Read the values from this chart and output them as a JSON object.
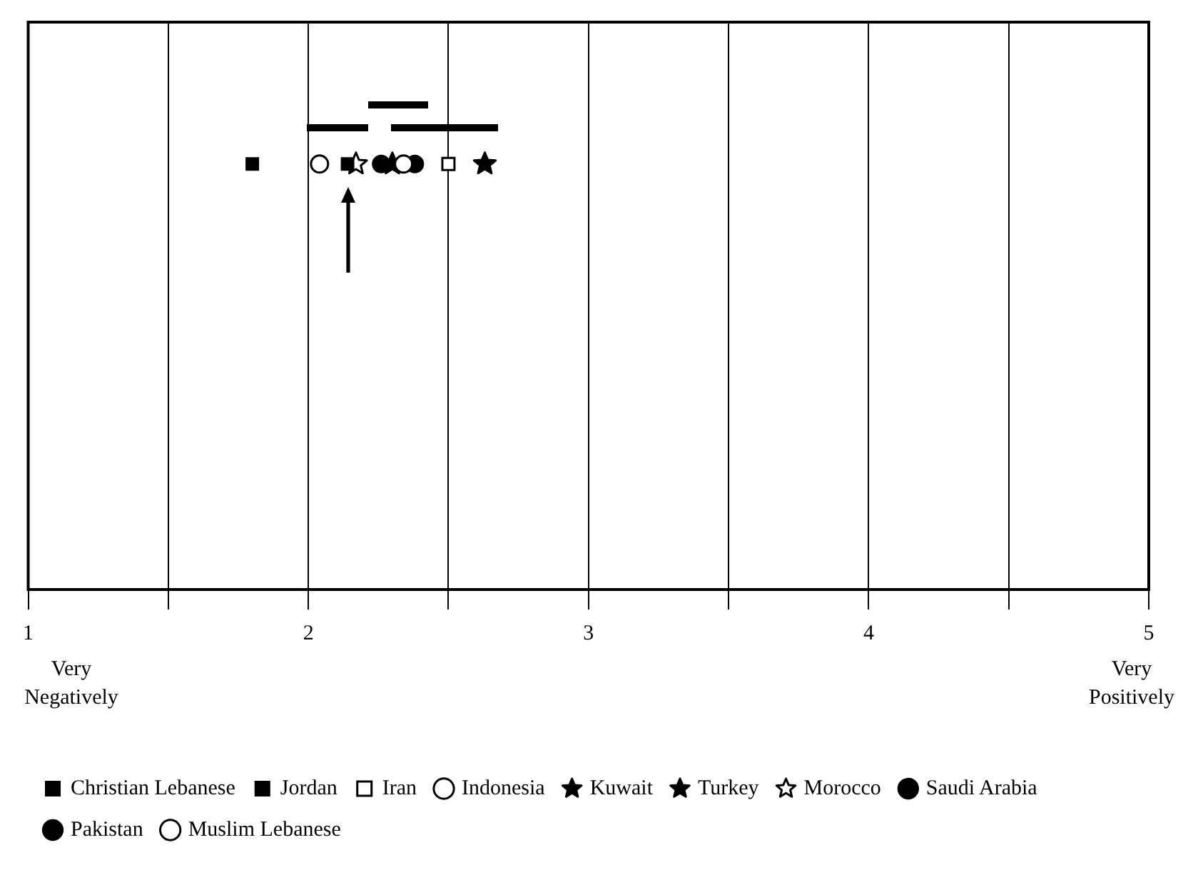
{
  "chart_data": {
    "type": "scatter",
    "orientation": "horizontal",
    "categories": [
      null
    ],
    "xlim": [
      1,
      5
    ],
    "xticks": [
      1,
      {
        "value": 1.5,
        "label": null
      },
      2,
      {
        "value": 2.5,
        "label": null
      },
      3,
      {
        "value": 3.5,
        "label": null
      },
      4,
      {
        "value": 4.5,
        "label": null
      },
      5
    ],
    "grid": "x",
    "legend": "bottom",
    "annotations": [
      "Very Negatively",
      "Very Positively"
    ],
    "series": [
      {
        "name": "Christian Lebanese",
        "color": "#000000",
        "marker": "square",
        "values": [
          1.8
        ]
      },
      {
        "name": "Jordan",
        "color": "#000000",
        "marker": "square",
        "values": [
          2.14
        ]
      },
      {
        "name": "Iran",
        "color": "#ffffff",
        "marker": "square",
        "values": [
          2.5
        ]
      },
      {
        "name": "Indonesia",
        "color": "#ffffff",
        "marker": "circle",
        "values": [
          2.34
        ]
      },
      {
        "name": "Kuwait",
        "color": "#000000",
        "marker": "star",
        "values": [
          2.3
        ]
      },
      {
        "name": "Turkey",
        "color": "#000000",
        "marker": "star",
        "values": [
          2.63
        ]
      },
      {
        "name": "Morocco",
        "color": "#ffffff",
        "marker": "star",
        "values": [
          2.17
        ]
      },
      {
        "name": "Saudi Arabia",
        "color": "#000000",
        "marker": "circle",
        "values": [
          2.26
        ]
      },
      {
        "name": "Pakistan",
        "color": "#000000",
        "marker": "circle",
        "values": [
          2.38
        ]
      },
      {
        "name": "Muslim Lebanese",
        "color": "#ffffff",
        "marker": "circle",
        "values": [
          2.04
        ]
      }
    ]
  }
}
